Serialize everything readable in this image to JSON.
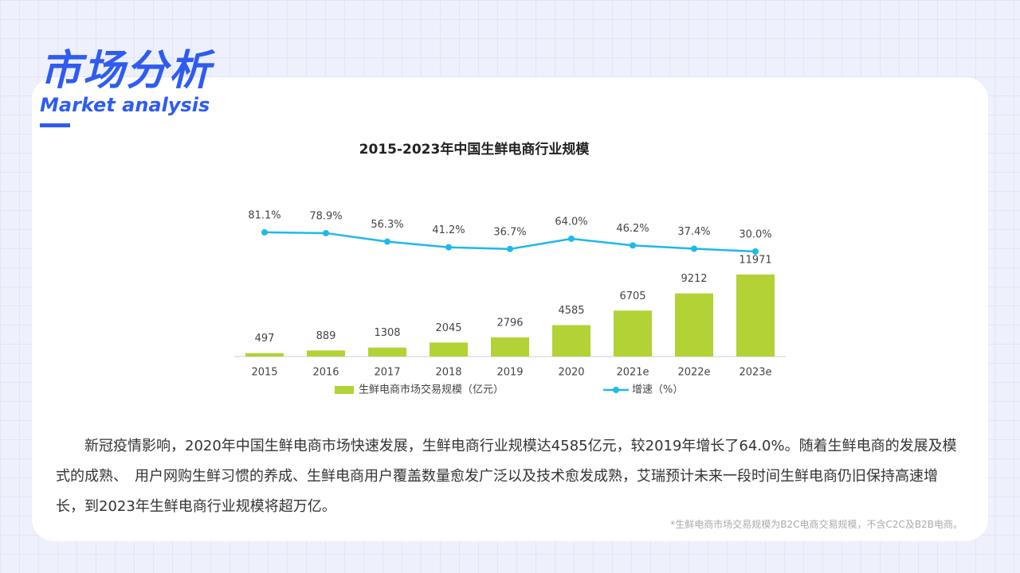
{
  "header": {
    "title": "市场分析",
    "subtitle": "Market analysis"
  },
  "chart_data": {
    "type": "bar",
    "title": "2015-2023年中国生鲜电商行业规模",
    "categories": [
      "2015",
      "2016",
      "2017",
      "2018",
      "2019",
      "2020",
      "2021e",
      "2022e",
      "2023e"
    ],
    "series": [
      {
        "name": "生鲜电商市场交易规模（亿元）",
        "type": "bar",
        "color": "#b2d235",
        "values": [
          497,
          889,
          1308,
          2045,
          2796,
          4585,
          6705,
          9212,
          11971
        ]
      },
      {
        "name": "增速（%）",
        "type": "line",
        "axis": "y2",
        "color": "#1fb8ea",
        "values": [
          81.1,
          78.9,
          56.3,
          41.2,
          36.7,
          64.0,
          46.2,
          37.4,
          30.0
        ],
        "value_labels": [
          "81.1%",
          "78.9%",
          "56.3%",
          "41.2%",
          "36.7%",
          "64.0%",
          "46.2%",
          "37.4%",
          "30.0%"
        ]
      }
    ],
    "ylim": [
      0,
      23000
    ],
    "y2lim": [
      -250,
      170
    ],
    "legend": "bottom"
  },
  "body": {
    "paragraph": "新冠疫情影响，2020年中国生鲜电商市场快速发展，生鲜电商行业规模达4585亿元，较2019年增长了64.0%。随着生鲜电商的发展及模式的成熟、　用户网购生鲜习惯的养成、生鲜电商用户覆盖数量愈发广泛以及技术愈发成熟，艾瑞预计未来一段时间生鲜电商仍旧保持高速增长，到2023年生鲜电商行业规模将超万亿。",
    "footnote": "*生鲜电商市场交易规模为B2C电商交易规模，不含C2C及B2B电商。"
  }
}
